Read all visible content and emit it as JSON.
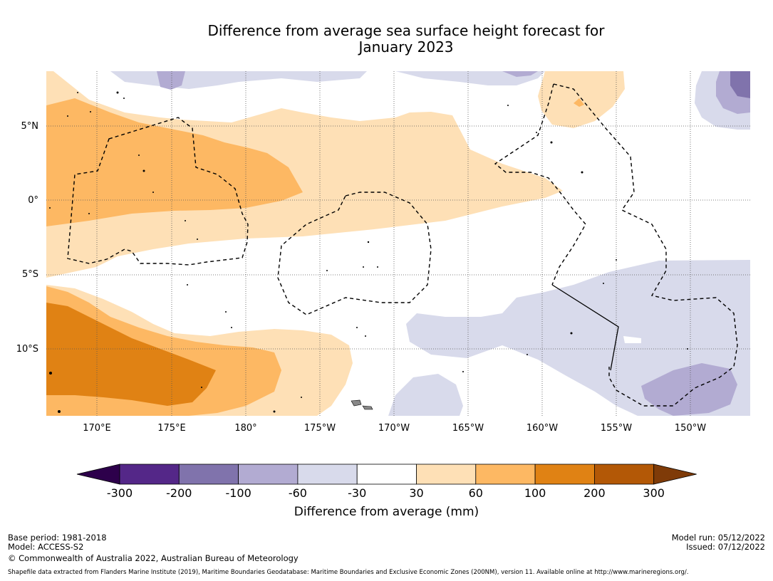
{
  "title": {
    "line1": "Difference from average sea surface height forecast for",
    "line2": "January 2023"
  },
  "map": {
    "lat_labels": [
      "5°N",
      "0°",
      "5°S",
      "10°S"
    ],
    "lon_labels": [
      "170°E",
      "175°E",
      "180°",
      "175°W",
      "170°W",
      "165°W",
      "160°W",
      "155°W",
      "150°W"
    ]
  },
  "legend": {
    "colors": [
      "#2d004b",
      "#542788",
      "#8073ac",
      "#b2abd2",
      "#d8daeb",
      "#ffffff",
      "#fee0b6",
      "#fdb863",
      "#e08214",
      "#b35806",
      "#7f3b08"
    ],
    "ticks": [
      "-300",
      "-200",
      "-100",
      "-60",
      "-30",
      "30",
      "60",
      "100",
      "200",
      "300"
    ],
    "label": "Difference from average (mm)"
  },
  "footer": {
    "base_period": "Base period: 1981-2018",
    "model": "Model: ACCESS-S2",
    "copyright": "© Commonwealth of Australia 2022, Australian Bureau of Meteorology",
    "model_run": "Model run: 05/12/2022",
    "issued": "Issued: 07/12/2022",
    "shapefile": "Shapefile data extracted from Flanders Marine Institute (2019), Maritime Boundaries Geodatabase: Maritime Boundaries and Exclusive Economic Zones (200NM), version 11. Available online at http://www.marineregions.org/."
  }
}
